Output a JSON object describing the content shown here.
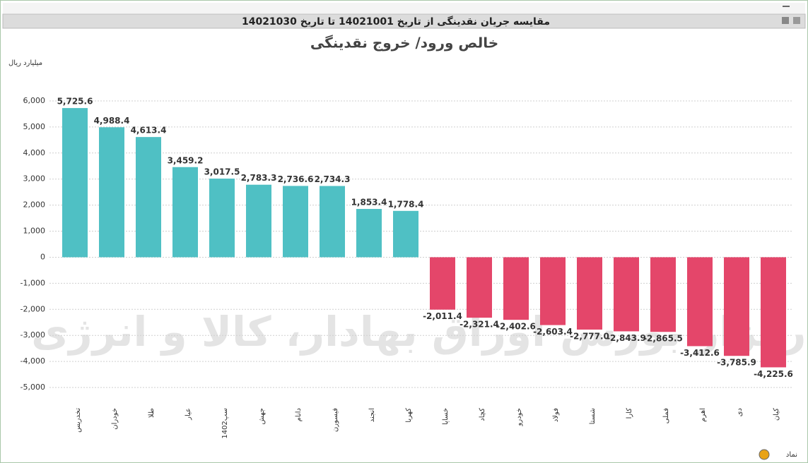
{
  "header": {
    "title": "مقایسه جریان نقدینگی از تاریخ 14021001 تا تاریخ 14021030"
  },
  "chart_data": {
    "type": "bar",
    "title": "خالص ورود/ خروج نقدینگی",
    "y_label": "میلیارد ریال",
    "x_label": "نماد",
    "watermark": "کارگزار بورس اوراق بهادار، کالا و انرژی",
    "categories": [
      "تخدریس",
      "خودران",
      "طلا",
      "عیار",
      "سپ1402",
      "جهش",
      "دانام",
      "فیسورن",
      "انجند",
      "کهربا",
      "خساپا",
      "کچاد",
      "خودرو",
      "فولاد",
      "شستا",
      "کارا",
      "فملی",
      "اهرم",
      "دی",
      "کیان"
    ],
    "values": [
      5725.6,
      4988.4,
      4613.4,
      3459.2,
      3017.5,
      2783.3,
      2736.6,
      2734.3,
      1853.4,
      1778.4,
      -2011.4,
      -2321.4,
      -2402.6,
      -2603.4,
      -2777.0,
      -2843.9,
      -2865.5,
      -3412.6,
      -3785.9,
      -4225.6
    ],
    "value_labels": [
      "5,725.6",
      "4,988.4",
      "4,613.4",
      "3,459.2",
      "3,017.5",
      "2,783.3",
      "2,736.6",
      "2,734.3",
      "1,853.4",
      "1,778.4",
      "-2,011.4",
      "-2,321.4",
      "-2,402.6",
      "-2,603.4",
      "-2,777.0",
      "-2,843.9",
      "-2,865.5",
      "-3,412.6",
      "-3,785.9",
      "-4,225.6"
    ],
    "positive_color": "#4fc0c4",
    "negative_color": "#e4466a",
    "ylim": [
      -5500,
      6500
    ],
    "yticks": [
      {
        "value": -5000,
        "label": "-5,000"
      },
      {
        "value": -4000,
        "label": "-4,000"
      },
      {
        "value": -3000,
        "label": "-3,000"
      },
      {
        "value": -2000,
        "label": "-2,000"
      },
      {
        "value": -1000,
        "label": "-1,000"
      },
      0,
      {
        "value": 1000,
        "label": "1,000"
      },
      {
        "value": 2000,
        "label": "2,000"
      },
      {
        "value": 3000,
        "label": "3,000"
      },
      {
        "value": 4000,
        "label": "4,000"
      },
      {
        "value": 5000,
        "label": "5,000"
      },
      {
        "value": 6000,
        "label": "6,000"
      }
    ],
    "grid": true
  }
}
